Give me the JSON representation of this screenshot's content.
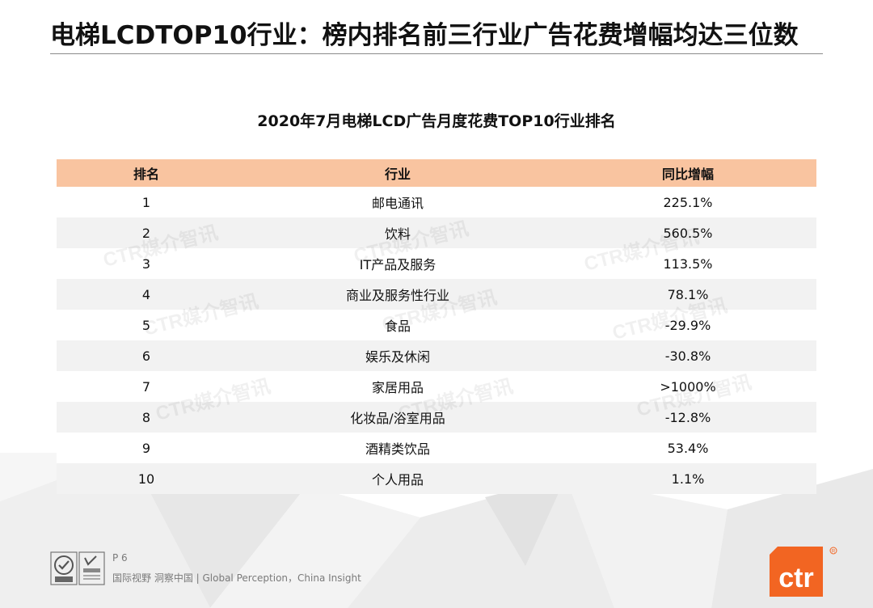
{
  "page": {
    "title": "电梯LCDTOP10行业：榜内排名前三行业广告花费增幅均达三位数",
    "table_title": "2020年7月电梯LCD广告月度花费TOP10行业排名"
  },
  "table": {
    "headers": [
      "排名",
      "行业",
      "同比增幅"
    ],
    "rows": [
      {
        "rank": "1",
        "industry": "邮电通讯",
        "growth": "225.1%"
      },
      {
        "rank": "2",
        "industry": "饮料",
        "growth": "560.5%"
      },
      {
        "rank": "3",
        "industry": "IT产品及服务",
        "growth": "113.5%"
      },
      {
        "rank": "4",
        "industry": "商业及服务性行业",
        "growth": "78.1%"
      },
      {
        "rank": "5",
        "industry": "食品",
        "growth": "-29.9%"
      },
      {
        "rank": "6",
        "industry": "娱乐及休闲",
        "growth": "-30.8%"
      },
      {
        "rank": "7",
        "industry": "家居用品",
        "growth": ">1000%"
      },
      {
        "rank": "8",
        "industry": "化妆品/浴室用品",
        "growth": "-12.8%"
      },
      {
        "rank": "9",
        "industry": "酒精类饮品",
        "growth": "53.4%"
      },
      {
        "rank": "10",
        "industry": "个人用品",
        "growth": "1.1%"
      }
    ],
    "header_color": "#f9c4a0",
    "stripe_color": "#f2f2f2"
  },
  "watermark": {
    "text": "CTR媒介智讯"
  },
  "footer": {
    "page_number": "P 6",
    "tagline": "国际视野  洞察中国 |  Global Perception，China Insight",
    "certification_icons": [
      "sgs-logo",
      "ukas-logo"
    ]
  },
  "brand": {
    "logo_text": "ctr",
    "color": "#f26522"
  }
}
